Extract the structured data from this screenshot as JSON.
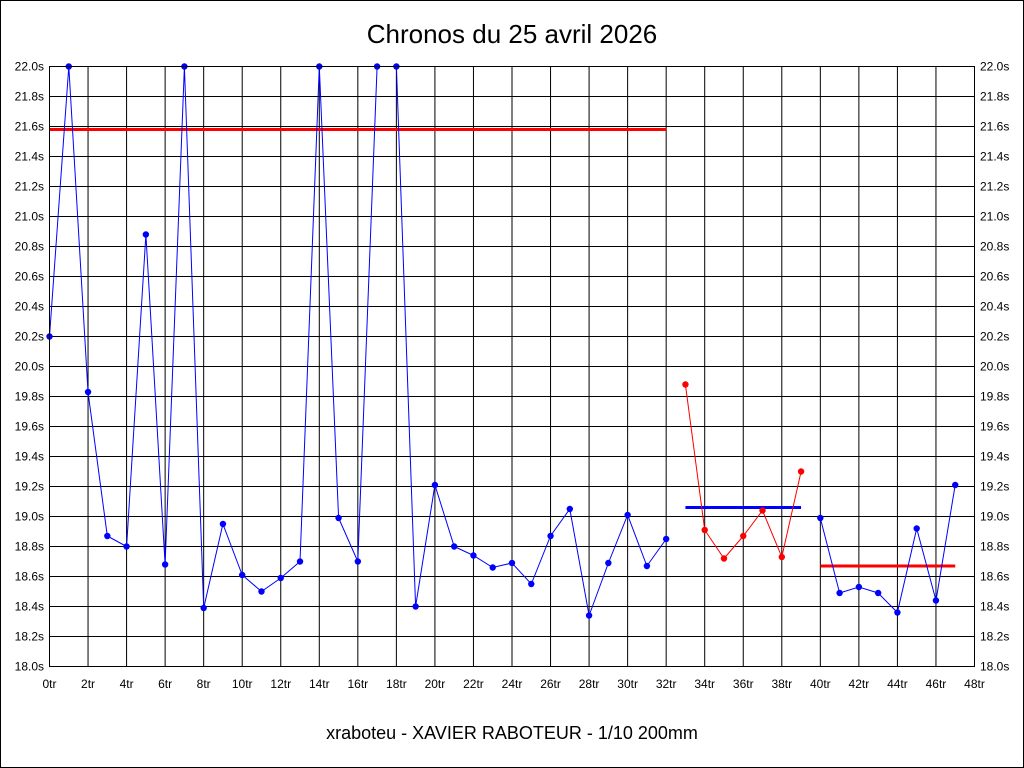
{
  "chart_data": {
    "type": "line",
    "title": "Chronos du 25 avril 2026",
    "xlabel": "xraboteu - XAVIER RABOTEUR - 1/10 200mm",
    "ylabel": "",
    "xlim": [
      0,
      48
    ],
    "ylim": [
      18.0,
      22.0
    ],
    "x_ticks": [
      "0tr",
      "2tr",
      "4tr",
      "6tr",
      "8tr",
      "10tr",
      "12tr",
      "14tr",
      "16tr",
      "18tr",
      "20tr",
      "22tr",
      "24tr",
      "26tr",
      "28tr",
      "30tr",
      "32tr",
      "34tr",
      "36tr",
      "38tr",
      "40tr",
      "42tr",
      "44tr",
      "46tr",
      "48tr"
    ],
    "y_ticks": [
      "18.0s",
      "18.2s",
      "18.4s",
      "18.6s",
      "18.8s",
      "19.0s",
      "19.2s",
      "19.4s",
      "19.6s",
      "19.8s",
      "20.0s",
      "20.2s",
      "20.4s",
      "20.6s",
      "20.8s",
      "21.0s",
      "21.2s",
      "21.4s",
      "21.6s",
      "21.8s",
      "22.0s"
    ],
    "grid": true,
    "y_axis_labels_on_both_sides": true,
    "series": [
      {
        "color": "#0000ff",
        "points": [
          [
            0,
            20.2
          ],
          [
            1,
            22.0
          ],
          [
            2,
            19.83
          ],
          [
            3,
            18.87
          ],
          [
            4,
            18.8
          ],
          [
            5,
            20.88
          ],
          [
            6,
            18.68
          ],
          [
            7,
            22.0
          ],
          [
            8,
            18.39
          ],
          [
            9,
            18.95
          ],
          [
            10,
            18.61
          ],
          [
            11,
            18.5
          ],
          [
            12,
            18.59
          ],
          [
            13,
            18.7
          ],
          [
            14,
            22.0
          ],
          [
            15,
            18.99
          ],
          [
            16,
            18.7
          ],
          [
            17,
            22.0
          ],
          [
            18,
            22.0
          ],
          [
            19,
            18.4
          ],
          [
            20,
            19.21
          ],
          [
            21,
            18.8
          ],
          [
            22,
            18.74
          ],
          [
            23,
            18.66
          ],
          [
            24,
            18.69
          ],
          [
            25,
            18.55
          ],
          [
            26,
            18.87
          ],
          [
            27,
            19.05
          ],
          [
            28,
            18.34
          ],
          [
            29,
            18.69
          ],
          [
            30,
            19.01
          ],
          [
            31,
            18.67
          ],
          [
            32,
            18.85
          ]
        ]
      },
      {
        "color": "#ff0000",
        "points": [
          [
            33,
            19.88
          ],
          [
            34,
            18.91
          ],
          [
            35,
            18.72
          ],
          [
            36,
            18.87
          ],
          [
            37,
            19.04
          ],
          [
            38,
            18.73
          ],
          [
            39,
            19.3
          ]
        ]
      },
      {
        "color": "#0000ff",
        "points": [
          [
            40,
            18.99
          ],
          [
            41,
            18.49
          ],
          [
            42,
            18.53
          ],
          [
            43,
            18.49
          ],
          [
            44,
            18.36
          ],
          [
            45,
            18.92
          ],
          [
            46,
            18.44
          ],
          [
            47,
            19.21
          ]
        ]
      }
    ],
    "average_lines": [
      {
        "color": "#ff0000",
        "x_start": 0,
        "x_end": 32,
        "value": 21.58
      },
      {
        "color": "#0000ff",
        "x_start": 33,
        "x_end": 39,
        "value": 19.06
      },
      {
        "color": "#ff0000",
        "x_start": 40,
        "x_end": 47,
        "value": 18.67
      }
    ]
  }
}
